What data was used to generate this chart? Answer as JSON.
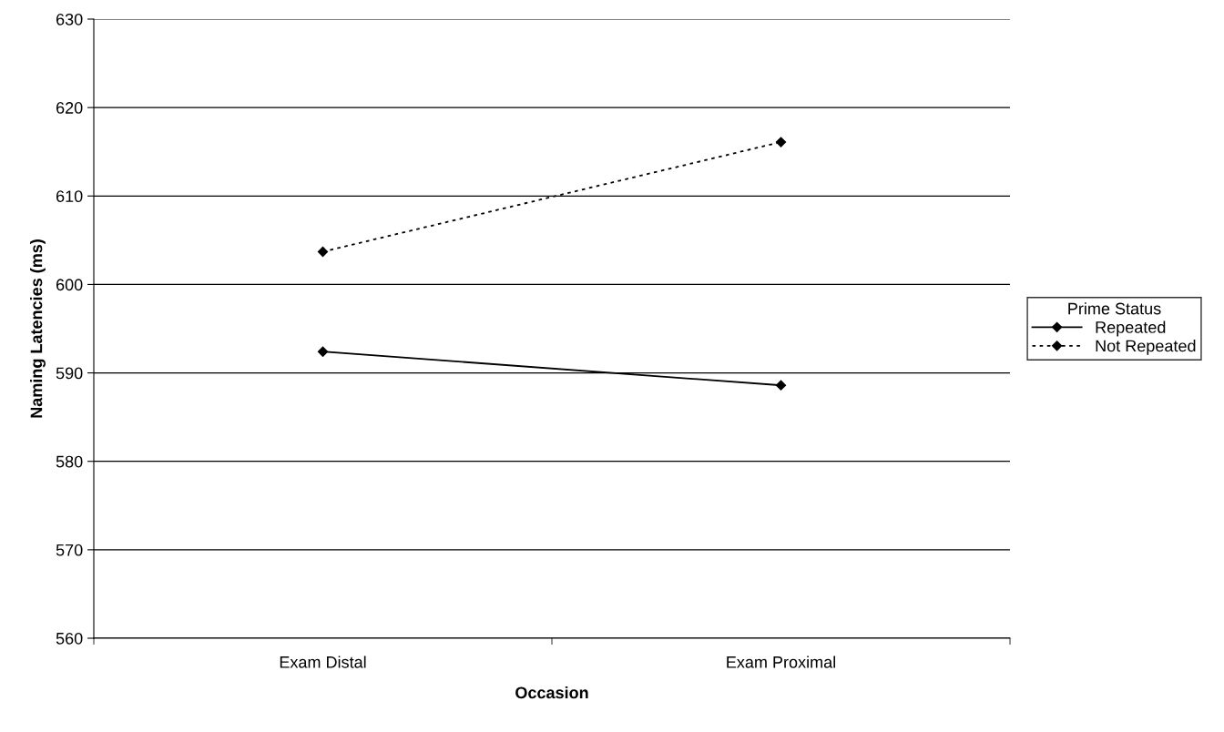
{
  "chart_data": {
    "type": "line",
    "xlabel": "Occasion",
    "ylabel": "Naming Latencies (ms)",
    "legend_title": "Prime Status",
    "categories": [
      "Exam Distal",
      "Exam Proximal"
    ],
    "series": [
      {
        "name": "Repeated",
        "color": "#000000",
        "line_style": "solid",
        "values": [
          592.4,
          588.6
        ]
      },
      {
        "name": "Not Repeated",
        "color": "#000000",
        "line_style": "dotted",
        "values": [
          603.7,
          616.1
        ]
      }
    ],
    "ylim": [
      560,
      630
    ],
    "yticks": [
      560,
      570,
      580,
      590,
      600,
      610,
      620,
      630
    ],
    "grid": "y",
    "legend": "right",
    "marker": "diamond"
  }
}
